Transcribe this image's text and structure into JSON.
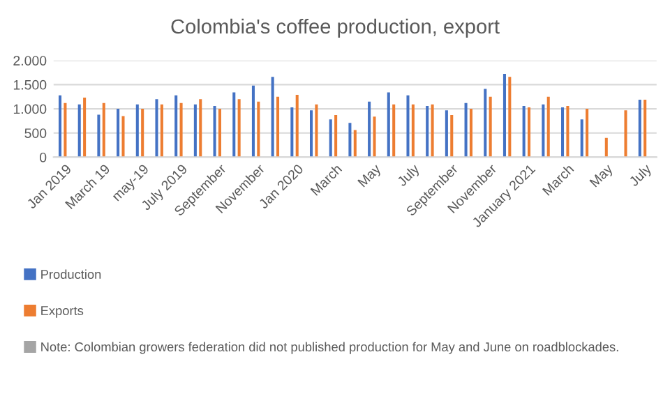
{
  "chart_data": {
    "type": "bar",
    "title": "Colombia's coffee production, export",
    "categories": [
      "Jan 2019",
      null,
      "March 19",
      null,
      "may-19",
      null,
      "July 2019",
      null,
      "September",
      null,
      "November",
      null,
      "Jan 2020",
      null,
      "March",
      null,
      "May",
      null,
      "July",
      null,
      "September",
      null,
      "November",
      null,
      "January 2021",
      null,
      "March",
      null,
      "May",
      null,
      "July"
    ],
    "series": [
      {
        "name": "Production",
        "color": "#4472c4",
        "values": [
          1280,
          1090,
          880,
          1000,
          1090,
          1200,
          1280,
          1090,
          1060,
          1340,
          1480,
          1660,
          1030,
          970,
          780,
          710,
          1150,
          1340,
          1280,
          1060,
          970,
          1120,
          1410,
          1720,
          1060,
          1090,
          1030,
          780,
          null,
          null,
          1190
        ]
      },
      {
        "name": "Exports",
        "color": "#ed7d31",
        "values": [
          1120,
          1230,
          1120,
          850,
          1000,
          1090,
          1120,
          1200,
          1000,
          1200,
          1150,
          1250,
          1290,
          1090,
          870,
          560,
          840,
          1090,
          1090,
          1090,
          870,
          1000,
          1250,
          1660,
          1030,
          1250,
          1060,
          1000,
          400,
          970,
          1190
        ]
      },
      {
        "name": "Note: Colombian growers federation did not published production for May and June on roadblockades.",
        "color": "#a5a5a5",
        "values": [
          null,
          null,
          null,
          null,
          null,
          null,
          null,
          null,
          null,
          null,
          null,
          null,
          null,
          null,
          null,
          null,
          null,
          null,
          null,
          null,
          null,
          null,
          null,
          null,
          null,
          null,
          null,
          null,
          null,
          null,
          null
        ]
      }
    ],
    "ylim": [
      0,
      2000
    ],
    "yticks": [
      0,
      {
        "value": 500,
        "label": "500"
      },
      {
        "value": 1000,
        "label": "1.000"
      },
      {
        "value": 1500,
        "label": "1.500"
      },
      {
        "value": 2000,
        "label": "2.000"
      }
    ],
    "grid": "y",
    "legend": "bottom"
  }
}
